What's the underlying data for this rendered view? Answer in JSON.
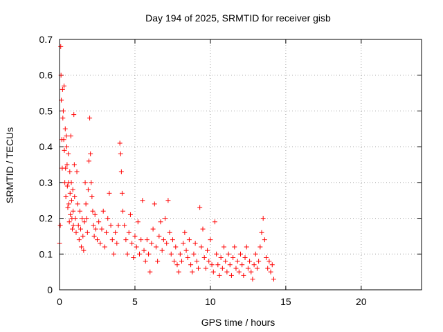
{
  "chart_data": {
    "type": "scatter",
    "title": "Day 194 of 2025, SRMTID for receiver gisb",
    "xlabel": "GPS time / hours",
    "ylabel": "SRMTID / TECUs",
    "xlim": [
      0,
      24
    ],
    "ylim": [
      0,
      0.7
    ],
    "xticks": [
      0,
      5,
      10,
      15,
      20
    ],
    "yticks": [
      0,
      0.1,
      0.2,
      0.3,
      0.4,
      0.5,
      0.6,
      0.7
    ],
    "xtick_labels": [
      "0",
      "5",
      "10",
      "15",
      "20"
    ],
    "ytick_labels": [
      "0",
      "0.1",
      "0.2",
      "0.3",
      "0.4",
      "0.5",
      "0.6",
      "0.7"
    ],
    "grid": true,
    "marker": "+",
    "series": [
      {
        "name": "SRMTID",
        "color": "#ff0000",
        "points": [
          [
            0.0,
            0.13
          ],
          [
            0.05,
            0.18
          ],
          [
            0.08,
            0.68
          ],
          [
            0.1,
            0.6
          ],
          [
            0.12,
            0.53
          ],
          [
            0.15,
            0.42
          ],
          [
            0.18,
            0.34
          ],
          [
            0.2,
            0.56
          ],
          [
            0.22,
            0.48
          ],
          [
            0.25,
            0.5
          ],
          [
            0.28,
            0.42
          ],
          [
            0.3,
            0.57
          ],
          [
            0.32,
            0.39
          ],
          [
            0.35,
            0.3
          ],
          [
            0.38,
            0.45
          ],
          [
            0.4,
            0.34
          ],
          [
            0.42,
            0.26
          ],
          [
            0.45,
            0.43
          ],
          [
            0.48,
            0.4
          ],
          [
            0.5,
            0.35
          ],
          [
            0.52,
            0.29
          ],
          [
            0.55,
            0.23
          ],
          [
            0.58,
            0.38
          ],
          [
            0.6,
            0.3
          ],
          [
            0.62,
            0.24
          ],
          [
            0.65,
            0.19
          ],
          [
            0.68,
            0.33
          ],
          [
            0.7,
            0.27
          ],
          [
            0.72,
            0.21
          ],
          [
            0.75,
            0.43
          ],
          [
            0.78,
            0.3
          ],
          [
            0.8,
            0.25
          ],
          [
            0.82,
            0.2
          ],
          [
            0.85,
            0.17
          ],
          [
            0.88,
            0.28
          ],
          [
            0.9,
            0.22
          ],
          [
            0.92,
            0.18
          ],
          [
            0.95,
            0.49
          ],
          [
            0.98,
            0.35
          ],
          [
            1.0,
            0.26
          ],
          [
            1.05,
            0.2
          ],
          [
            1.1,
            0.16
          ],
          [
            1.15,
            0.33
          ],
          [
            1.2,
            0.24
          ],
          [
            1.25,
            0.18
          ],
          [
            1.3,
            0.14
          ],
          [
            1.35,
            0.22
          ],
          [
            1.4,
            0.17
          ],
          [
            1.45,
            0.12
          ],
          [
            1.5,
            0.2
          ],
          [
            1.55,
            0.15
          ],
          [
            1.6,
            0.11
          ],
          [
            1.65,
            0.19
          ],
          [
            1.7,
            0.3
          ],
          [
            1.75,
            0.24
          ],
          [
            1.8,
            0.2
          ],
          [
            1.85,
            0.16
          ],
          [
            1.9,
            0.28
          ],
          [
            1.95,
            0.36
          ],
          [
            2.0,
            0.48
          ],
          [
            2.05,
            0.38
          ],
          [
            2.1,
            0.3
          ],
          [
            2.15,
            0.26
          ],
          [
            2.2,
            0.22
          ],
          [
            2.25,
            0.18
          ],
          [
            2.3,
            0.15
          ],
          [
            2.35,
            0.21
          ],
          [
            2.4,
            0.17
          ],
          [
            2.5,
            0.14
          ],
          [
            2.6,
            0.19
          ],
          [
            2.7,
            0.13
          ],
          [
            2.8,
            0.17
          ],
          [
            2.9,
            0.22
          ],
          [
            3.0,
            0.12
          ],
          [
            3.1,
            0.16
          ],
          [
            3.2,
            0.2
          ],
          [
            3.3,
            0.27
          ],
          [
            3.4,
            0.18
          ],
          [
            3.5,
            0.14
          ],
          [
            3.6,
            0.1
          ],
          [
            3.7,
            0.16
          ],
          [
            3.8,
            0.13
          ],
          [
            3.9,
            0.18
          ],
          [
            4.0,
            0.41
          ],
          [
            4.05,
            0.38
          ],
          [
            4.1,
            0.33
          ],
          [
            4.15,
            0.27
          ],
          [
            4.2,
            0.22
          ],
          [
            4.3,
            0.18
          ],
          [
            4.4,
            0.14
          ],
          [
            4.5,
            0.1
          ],
          [
            4.6,
            0.16
          ],
          [
            4.7,
            0.21
          ],
          [
            4.8,
            0.13
          ],
          [
            4.9,
            0.09
          ],
          [
            5.0,
            0.15
          ],
          [
            5.1,
            0.12
          ],
          [
            5.2,
            0.19
          ],
          [
            5.3,
            0.1
          ],
          [
            5.4,
            0.14
          ],
          [
            5.5,
            0.25
          ],
          [
            5.6,
            0.11
          ],
          [
            5.7,
            0.08
          ],
          [
            5.8,
            0.14
          ],
          [
            5.9,
            0.1
          ],
          [
            6.0,
            0.05
          ],
          [
            6.1,
            0.13
          ],
          [
            6.2,
            0.17
          ],
          [
            6.3,
            0.24
          ],
          [
            6.4,
            0.12
          ],
          [
            6.5,
            0.08
          ],
          [
            6.6,
            0.15
          ],
          [
            6.7,
            0.19
          ],
          [
            6.8,
            0.11
          ],
          [
            6.9,
            0.14
          ],
          [
            7.0,
            0.2
          ],
          [
            7.1,
            0.13
          ],
          [
            7.2,
            0.25
          ],
          [
            7.3,
            0.16
          ],
          [
            7.4,
            0.1
          ],
          [
            7.5,
            0.14
          ],
          [
            7.6,
            0.08
          ],
          [
            7.7,
            0.12
          ],
          [
            7.8,
            0.07
          ],
          [
            7.9,
            0.05
          ],
          [
            8.0,
            0.1
          ],
          [
            8.1,
            0.08
          ],
          [
            8.2,
            0.13
          ],
          [
            8.3,
            0.16
          ],
          [
            8.4,
            0.11
          ],
          [
            8.5,
            0.09
          ],
          [
            8.6,
            0.14
          ],
          [
            8.7,
            0.07
          ],
          [
            8.8,
            0.05
          ],
          [
            8.9,
            0.1
          ],
          [
            9.0,
            0.13
          ],
          [
            9.1,
            0.08
          ],
          [
            9.2,
            0.06
          ],
          [
            9.3,
            0.23
          ],
          [
            9.4,
            0.12
          ],
          [
            9.5,
            0.17
          ],
          [
            9.6,
            0.09
          ],
          [
            9.7,
            0.06
          ],
          [
            9.8,
            0.11
          ],
          [
            9.9,
            0.08
          ],
          [
            10.0,
            0.14
          ],
          [
            10.1,
            0.07
          ],
          [
            10.2,
            0.05
          ],
          [
            10.3,
            0.19
          ],
          [
            10.4,
            0.1
          ],
          [
            10.5,
            0.07
          ],
          [
            10.6,
            0.04
          ],
          [
            10.7,
            0.09
          ],
          [
            10.8,
            0.06
          ],
          [
            10.9,
            0.12
          ],
          [
            11.0,
            0.08
          ],
          [
            11.1,
            0.05
          ],
          [
            11.2,
            0.1
          ],
          [
            11.3,
            0.07
          ],
          [
            11.4,
            0.04
          ],
          [
            11.5,
            0.09
          ],
          [
            11.6,
            0.12
          ],
          [
            11.7,
            0.06
          ],
          [
            11.8,
            0.08
          ],
          [
            11.9,
            0.05
          ],
          [
            12.0,
            0.1
          ],
          [
            12.1,
            0.07
          ],
          [
            12.2,
            0.04
          ],
          [
            12.3,
            0.09
          ],
          [
            12.4,
            0.12
          ],
          [
            12.5,
            0.06
          ],
          [
            12.6,
            0.08
          ],
          [
            12.7,
            0.05
          ],
          [
            12.8,
            0.03
          ],
          [
            12.9,
            0.07
          ],
          [
            13.0,
            0.1
          ],
          [
            13.1,
            0.06
          ],
          [
            13.2,
            0.08
          ],
          [
            13.3,
            0.12
          ],
          [
            13.4,
            0.16
          ],
          [
            13.5,
            0.2
          ],
          [
            13.6,
            0.14
          ],
          [
            13.7,
            0.09
          ],
          [
            13.8,
            0.06
          ],
          [
            13.9,
            0.08
          ],
          [
            14.0,
            0.05
          ],
          [
            14.1,
            0.07
          ],
          [
            14.2,
            0.03
          ]
        ]
      }
    ]
  }
}
